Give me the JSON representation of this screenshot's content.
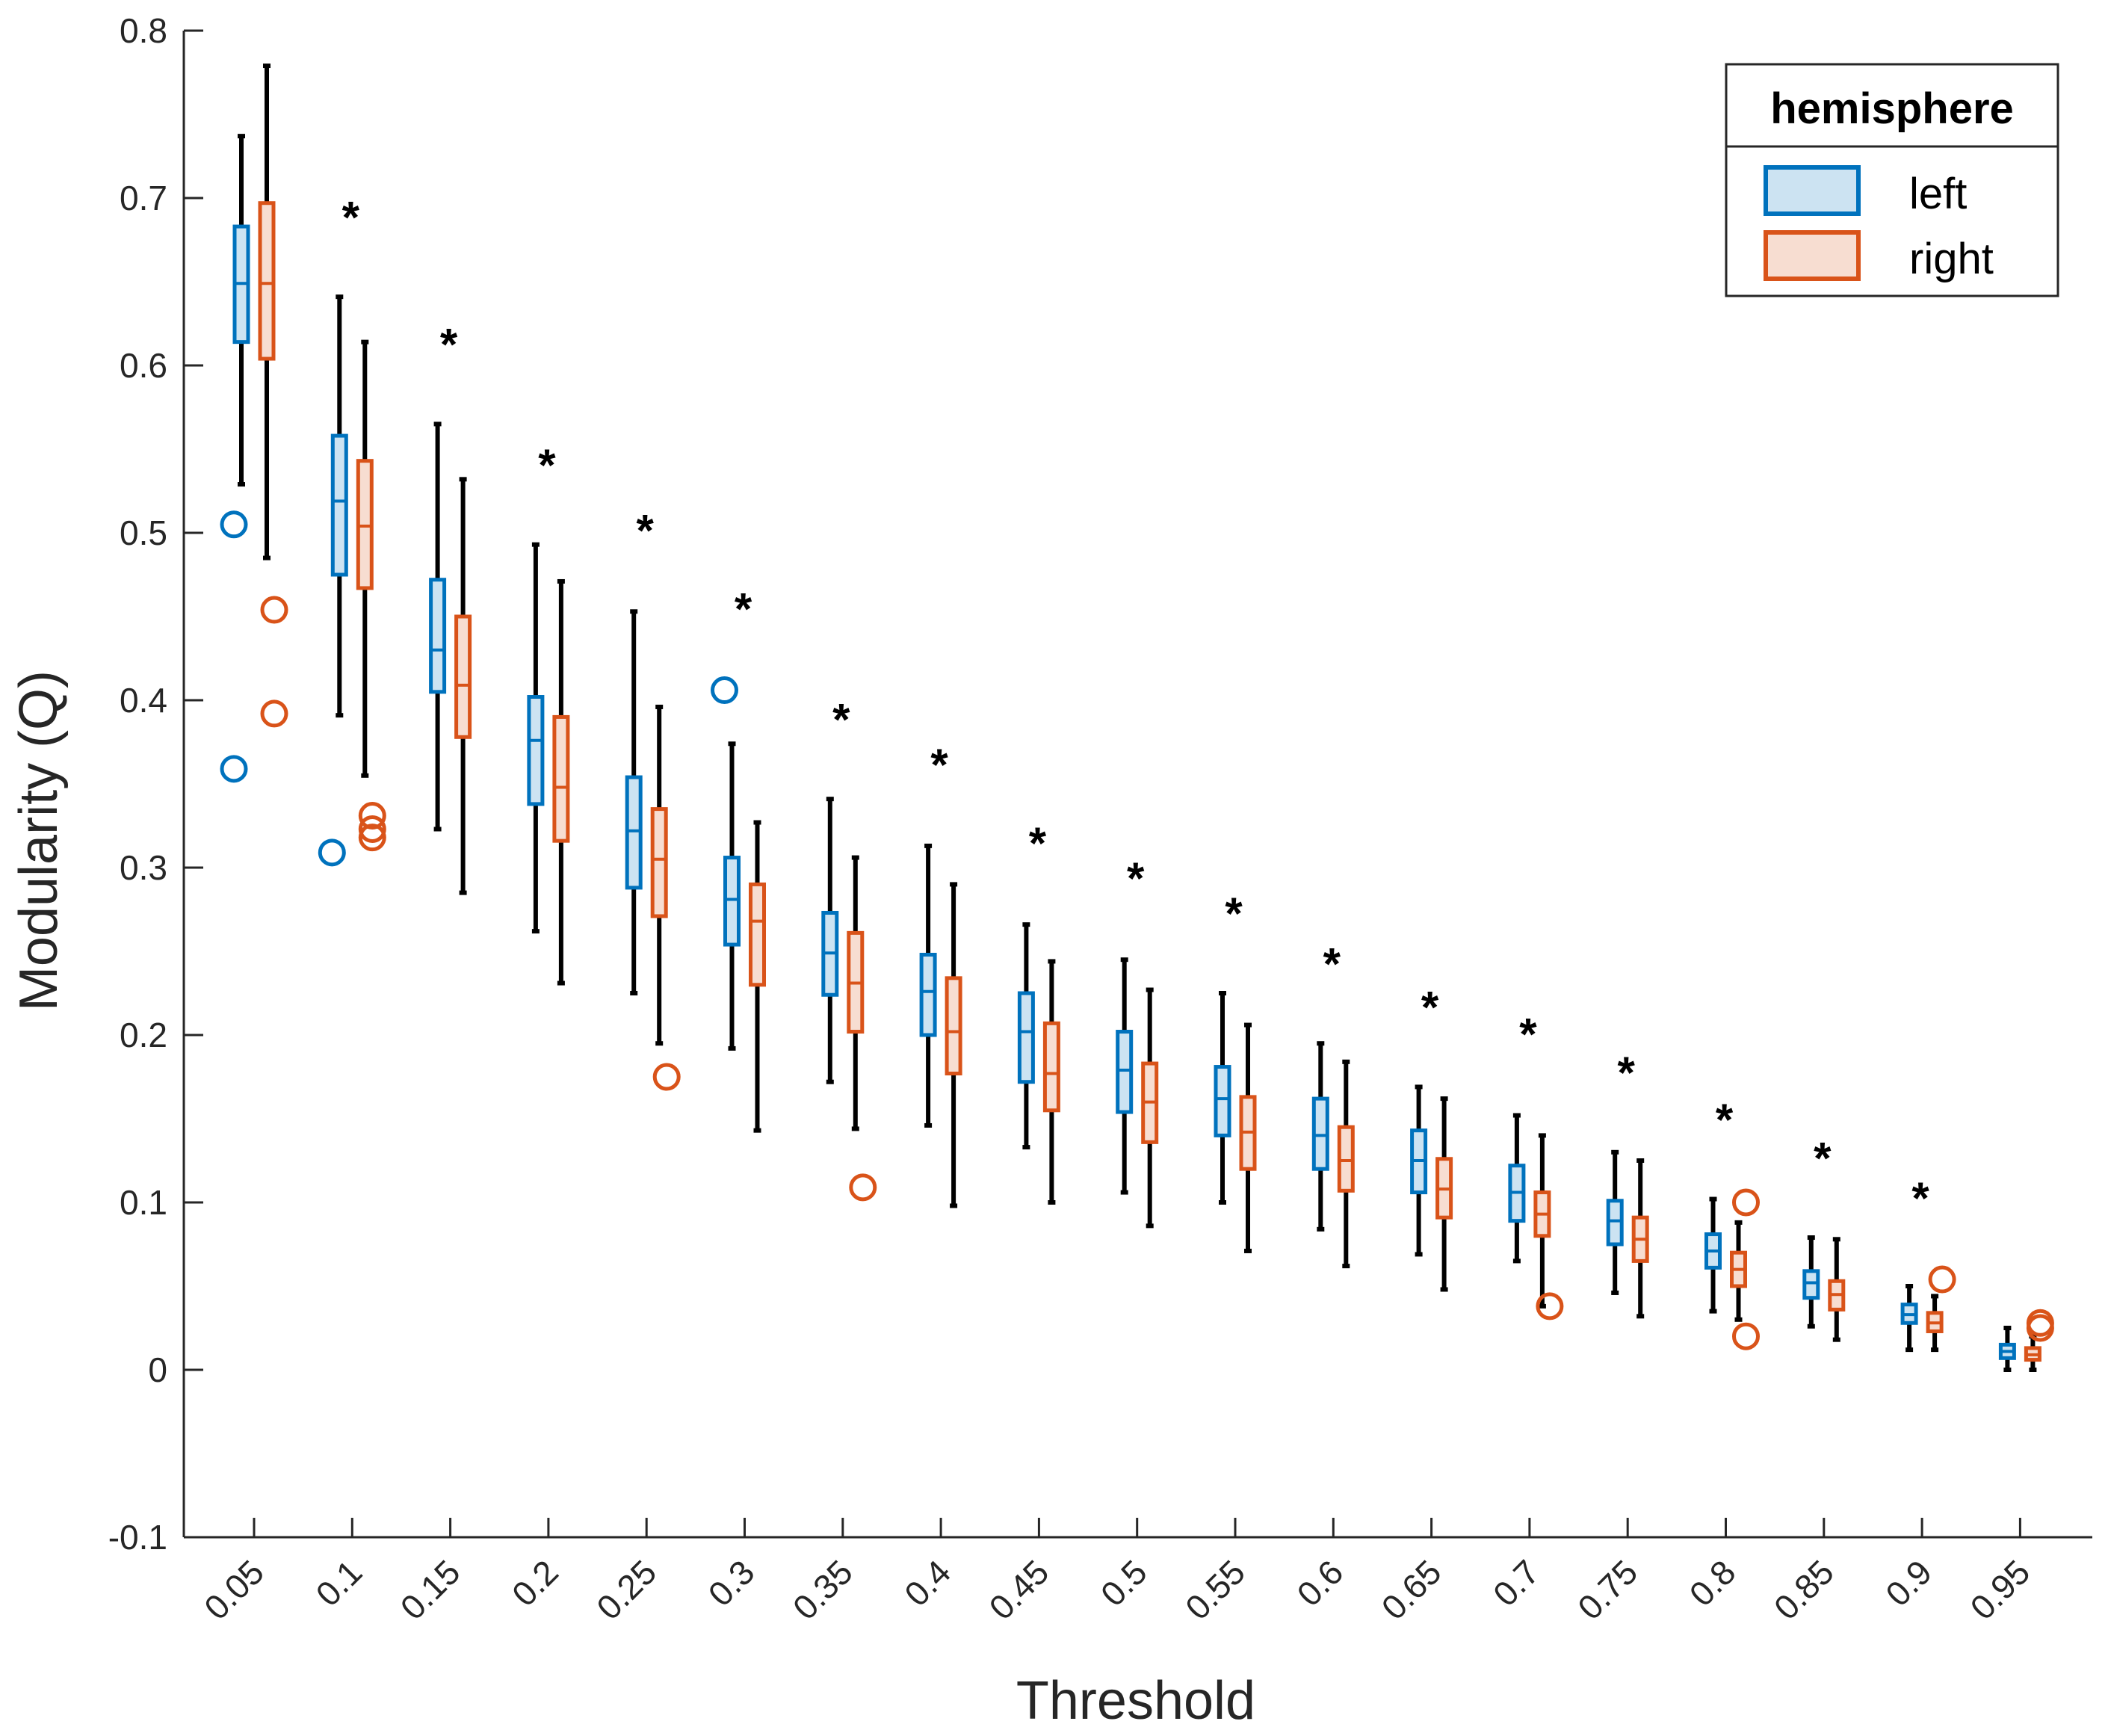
{
  "chart_data": {
    "type": "boxplot",
    "title": "",
    "xlabel": "Threshold",
    "ylabel": "Modularity (Q)",
    "ylim": [
      -0.1,
      0.8
    ],
    "yticks": [
      -0.1,
      0,
      0.1,
      0.2,
      0.3,
      0.4,
      0.5,
      0.6,
      0.7,
      0.8
    ],
    "ytick_labels": [
      "-0.1",
      "0",
      "0.1",
      "0.2",
      "0.3",
      "0.4",
      "0.5",
      "0.6",
      "0.7",
      "0.8"
    ],
    "categories": [
      "0.05",
      "0.1",
      "0.15",
      "0.2",
      "0.25",
      "0.3",
      "0.35",
      "0.4",
      "0.45",
      "0.5",
      "0.55",
      "0.6",
      "0.65",
      "0.7",
      "0.75",
      "0.8",
      "0.85",
      "0.9",
      "0.95"
    ],
    "legend": {
      "title": "hemisphere",
      "position": "top-right"
    },
    "significance_marker": "*",
    "significance_y": [
      null,
      0.69,
      0.614,
      0.542,
      0.503,
      0.456,
      0.39,
      0.363,
      0.316,
      0.295,
      0.274,
      0.244,
      0.218,
      0.202,
      0.179,
      0.151,
      0.128,
      0.104,
      null
    ],
    "series": [
      {
        "name": "left",
        "color": "#0072BD",
        "fill": "#CCE3F2",
        "boxes": [
          {
            "whislo": 0.529,
            "q1": 0.614,
            "med": 0.649,
            "q3": 0.683,
            "whishi": 0.737,
            "fliers": [
              0.505,
              0.359
            ]
          },
          {
            "whislo": 0.391,
            "q1": 0.475,
            "med": 0.519,
            "q3": 0.558,
            "whishi": 0.641,
            "fliers": [
              0.309
            ]
          },
          {
            "whislo": 0.323,
            "q1": 0.405,
            "med": 0.43,
            "q3": 0.472,
            "whishi": 0.565,
            "fliers": []
          },
          {
            "whislo": 0.262,
            "q1": 0.338,
            "med": 0.376,
            "q3": 0.402,
            "whishi": 0.493,
            "fliers": []
          },
          {
            "whislo": 0.225,
            "q1": 0.288,
            "med": 0.322,
            "q3": 0.354,
            "whishi": 0.453,
            "fliers": []
          },
          {
            "whislo": 0.192,
            "q1": 0.254,
            "med": 0.281,
            "q3": 0.306,
            "whishi": 0.374,
            "fliers": [
              0.406
            ]
          },
          {
            "whislo": 0.172,
            "q1": 0.224,
            "med": 0.249,
            "q3": 0.273,
            "whishi": 0.341,
            "fliers": []
          },
          {
            "whislo": 0.146,
            "q1": 0.2,
            "med": 0.226,
            "q3": 0.248,
            "whishi": 0.313,
            "fliers": []
          },
          {
            "whislo": 0.133,
            "q1": 0.172,
            "med": 0.202,
            "q3": 0.225,
            "whishi": 0.266,
            "fliers": []
          },
          {
            "whislo": 0.106,
            "q1": 0.154,
            "med": 0.179,
            "q3": 0.202,
            "whishi": 0.245,
            "fliers": []
          },
          {
            "whislo": 0.1,
            "q1": 0.14,
            "med": 0.162,
            "q3": 0.181,
            "whishi": 0.225,
            "fliers": []
          },
          {
            "whislo": 0.084,
            "q1": 0.12,
            "med": 0.14,
            "q3": 0.162,
            "whishi": 0.195,
            "fliers": []
          },
          {
            "whislo": 0.069,
            "q1": 0.106,
            "med": 0.125,
            "q3": 0.143,
            "whishi": 0.169,
            "fliers": []
          },
          {
            "whislo": 0.065,
            "q1": 0.089,
            "med": 0.106,
            "q3": 0.122,
            "whishi": 0.152,
            "fliers": []
          },
          {
            "whislo": 0.046,
            "q1": 0.075,
            "med": 0.089,
            "q3": 0.101,
            "whishi": 0.13,
            "fliers": []
          },
          {
            "whislo": 0.035,
            "q1": 0.061,
            "med": 0.071,
            "q3": 0.081,
            "whishi": 0.102,
            "fliers": []
          },
          {
            "whislo": 0.026,
            "q1": 0.043,
            "med": 0.052,
            "q3": 0.059,
            "whishi": 0.079,
            "fliers": []
          },
          {
            "whislo": 0.012,
            "q1": 0.028,
            "med": 0.033,
            "q3": 0.039,
            "whishi": 0.05,
            "fliers": []
          },
          {
            "whislo": 0.0,
            "q1": 0.007,
            "med": 0.011,
            "q3": 0.015,
            "whishi": 0.025,
            "fliers": []
          }
        ]
      },
      {
        "name": "right",
        "color": "#D95319",
        "fill": "#F7DDD1",
        "boxes": [
          {
            "whislo": 0.485,
            "q1": 0.604,
            "med": 0.649,
            "q3": 0.697,
            "whishi": 0.779,
            "fliers": [
              0.454,
              0.392
            ]
          },
          {
            "whislo": 0.355,
            "q1": 0.467,
            "med": 0.504,
            "q3": 0.543,
            "whishi": 0.614,
            "fliers": [
              0.331,
              0.323,
              0.318
            ]
          },
          {
            "whislo": 0.285,
            "q1": 0.378,
            "med": 0.409,
            "q3": 0.45,
            "whishi": 0.532,
            "fliers": []
          },
          {
            "whislo": 0.231,
            "q1": 0.316,
            "med": 0.348,
            "q3": 0.39,
            "whishi": 0.471,
            "fliers": []
          },
          {
            "whislo": 0.195,
            "q1": 0.271,
            "med": 0.305,
            "q3": 0.335,
            "whishi": 0.396,
            "fliers": [
              0.175
            ]
          },
          {
            "whislo": 0.143,
            "q1": 0.23,
            "med": 0.268,
            "q3": 0.29,
            "whishi": 0.327,
            "fliers": []
          },
          {
            "whislo": 0.144,
            "q1": 0.202,
            "med": 0.231,
            "q3": 0.261,
            "whishi": 0.306,
            "fliers": [
              0.109
            ]
          },
          {
            "whislo": 0.098,
            "q1": 0.177,
            "med": 0.202,
            "q3": 0.234,
            "whishi": 0.29,
            "fliers": []
          },
          {
            "whislo": 0.1,
            "q1": 0.155,
            "med": 0.177,
            "q3": 0.207,
            "whishi": 0.244,
            "fliers": []
          },
          {
            "whislo": 0.086,
            "q1": 0.136,
            "med": 0.16,
            "q3": 0.183,
            "whishi": 0.227,
            "fliers": []
          },
          {
            "whislo": 0.071,
            "q1": 0.12,
            "med": 0.142,
            "q3": 0.163,
            "whishi": 0.206,
            "fliers": []
          },
          {
            "whislo": 0.062,
            "q1": 0.107,
            "med": 0.125,
            "q3": 0.145,
            "whishi": 0.184,
            "fliers": []
          },
          {
            "whislo": 0.048,
            "q1": 0.091,
            "med": 0.108,
            "q3": 0.126,
            "whishi": 0.162,
            "fliers": []
          },
          {
            "whislo": 0.038,
            "q1": 0.08,
            "med": 0.093,
            "q3": 0.106,
            "whishi": 0.14,
            "fliers": [
              0.038
            ]
          },
          {
            "whislo": 0.032,
            "q1": 0.065,
            "med": 0.078,
            "q3": 0.091,
            "whishi": 0.125,
            "fliers": []
          },
          {
            "whislo": 0.03,
            "q1": 0.05,
            "med": 0.06,
            "q3": 0.07,
            "whishi": 0.088,
            "fliers": [
              0.1,
              0.02
            ]
          },
          {
            "whislo": 0.018,
            "q1": 0.036,
            "med": 0.045,
            "q3": 0.053,
            "whishi": 0.078,
            "fliers": []
          },
          {
            "whislo": 0.012,
            "q1": 0.023,
            "med": 0.028,
            "q3": 0.034,
            "whishi": 0.044,
            "fliers": [
              0.054
            ]
          },
          {
            "whislo": 0.0,
            "q1": 0.006,
            "med": 0.009,
            "q3": 0.013,
            "whishi": 0.02,
            "fliers": [
              0.028,
              0.025
            ]
          }
        ]
      }
    ]
  }
}
